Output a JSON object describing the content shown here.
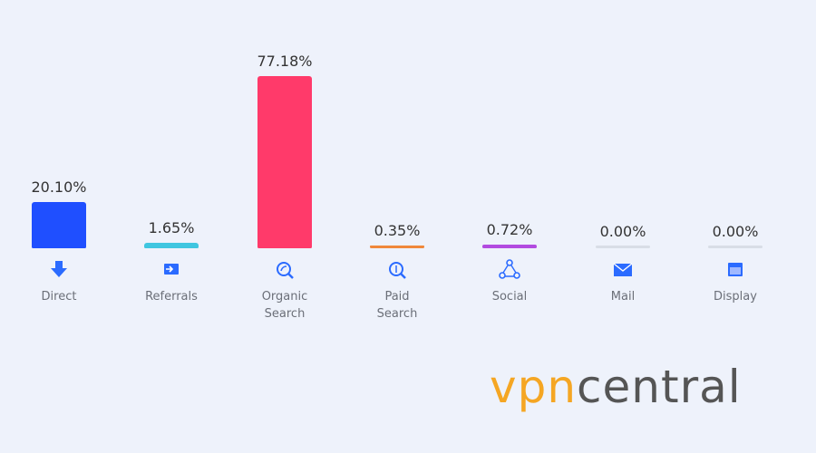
{
  "chart_data": {
    "type": "bar",
    "categories": [
      "Direct",
      "Referrals",
      "Organic Search",
      "Paid Search",
      "Social",
      "Mail",
      "Display"
    ],
    "values": [
      20.1,
      1.65,
      77.18,
      0.35,
      0.72,
      0.0,
      0.0
    ],
    "value_labels": [
      "20.10%",
      "1.65%",
      "77.18%",
      "0.35%",
      "0.72%",
      "0.00%",
      "0.00%"
    ],
    "colors": [
      "#1f4fff",
      "#3fc6e0",
      "#ff3a6a",
      "#f0883a",
      "#b24be0",
      "#d8dde6",
      "#d8dde6"
    ]
  },
  "watermark": [
    "vpn",
    "central"
  ]
}
